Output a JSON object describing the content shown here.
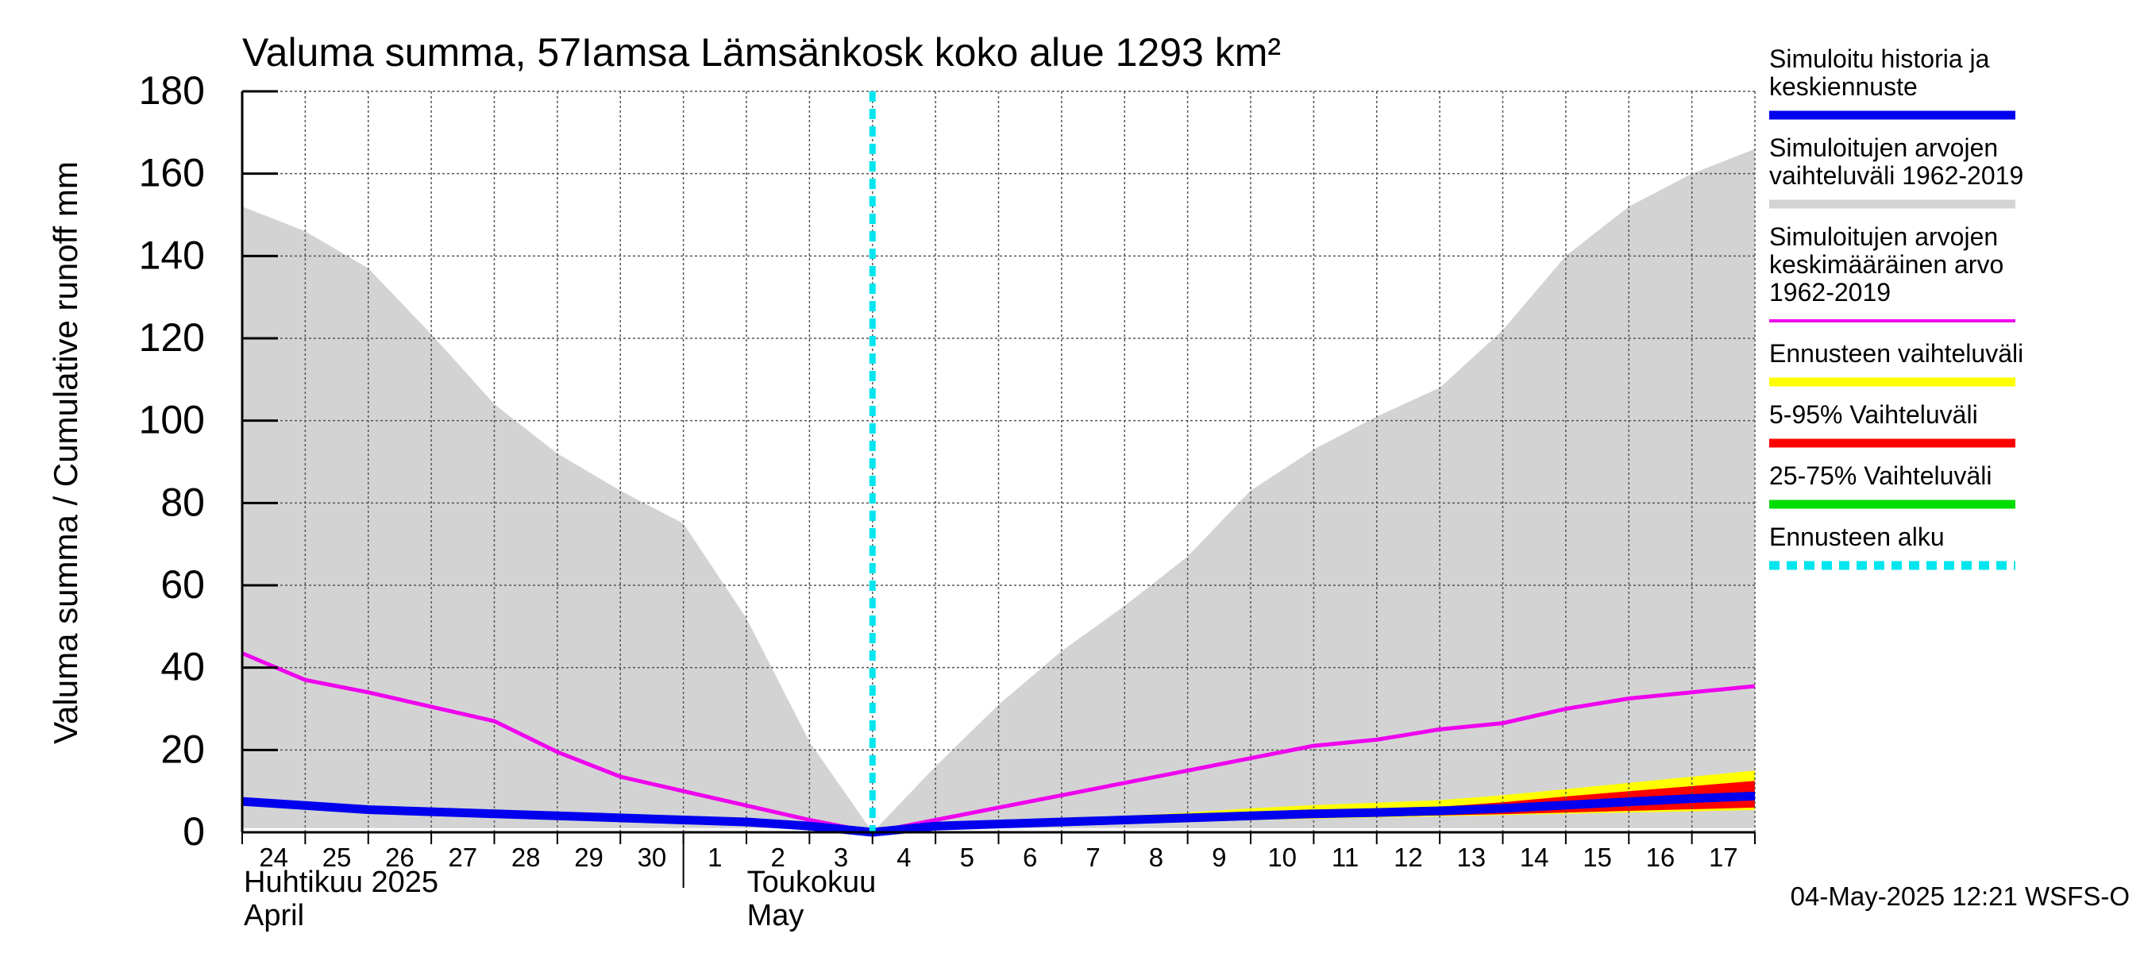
{
  "title": "Valuma summa, 57Iamsa Lämsänkosk koko alue 1293 km²",
  "timestamp": "04-May-2025 12:21 WSFS-O",
  "chart_data": {
    "type": "area",
    "ylabel": "Valuma summa / Cumulative runoff    mm",
    "ylim": [
      0,
      180
    ],
    "yticks": [
      0,
      20,
      40,
      60,
      80,
      100,
      120,
      140,
      160,
      180
    ],
    "grid": true,
    "legend_position": "right",
    "x_tick_labels": [
      "24",
      "25",
      "26",
      "27",
      "28",
      "29",
      "30",
      "1",
      "2",
      "3",
      "4",
      "5",
      "6",
      "7",
      "8",
      "9",
      "10",
      "11",
      "12",
      "13",
      "14",
      "15",
      "16",
      "17"
    ],
    "month_labels": [
      {
        "fi": "Huhtikuu  2025",
        "en": "April"
      },
      {
        "fi": "Toukokuu",
        "en": "May"
      }
    ],
    "x": [
      "2025-04-24",
      "2025-04-25",
      "2025-04-26",
      "2025-04-27",
      "2025-04-28",
      "2025-04-29",
      "2025-04-30",
      "2025-05-01",
      "2025-05-02",
      "2025-05-03",
      "2025-05-04",
      "2025-05-05",
      "2025-05-06",
      "2025-05-07",
      "2025-05-08",
      "2025-05-09",
      "2025-05-10",
      "2025-05-11",
      "2025-05-12",
      "2025-05-13",
      "2025-05-14",
      "2025-05-15",
      "2025-05-16",
      "2025-05-17",
      "2025-05-18"
    ],
    "forecast_start": "2025-05-04",
    "series": [
      {
        "key": "range",
        "name": "Simuloitujen arvojen vaihteluväli 1962-2019",
        "color": "#d3d3d3",
        "kind": "band",
        "lower": [
          1,
          1,
          1,
          1,
          1,
          1,
          1,
          1,
          1,
          1,
          0,
          1,
          1,
          1,
          1,
          1,
          1,
          1,
          1,
          1,
          1,
          1,
          1,
          1,
          1
        ],
        "upper": [
          152,
          146,
          137,
          121,
          104,
          92,
          83,
          75,
          52,
          22,
          0,
          16,
          31,
          44,
          55,
          67,
          83,
          93,
          101,
          108,
          122,
          140,
          152,
          160,
          166
        ]
      },
      {
        "key": "mean",
        "name": "Simuloitujen arvojen keskimääräinen arvo 1962-2019",
        "color": "#ee00ee",
        "kind": "line",
        "values": [
          43.5,
          37,
          34,
          30.5,
          27,
          19.5,
          13.5,
          10,
          6.5,
          3,
          0,
          3,
          6,
          9,
          12,
          15,
          18,
          21,
          22.5,
          25,
          26.5,
          30,
          32.5,
          34,
          35.5
        ]
      },
      {
        "key": "fc_range",
        "name": "Ennusteen vaihteluväli",
        "color": "#ffff00",
        "kind": "band",
        "lower": [
          null,
          null,
          null,
          null,
          null,
          null,
          null,
          null,
          null,
          null,
          0,
          1.0,
          1.4,
          1.8,
          2.2,
          2.6,
          3.0,
          3.3,
          3.6,
          3.9,
          4.2,
          4.5,
          4.8,
          5.1,
          5.4
        ],
        "upper": [
          null,
          null,
          null,
          null,
          null,
          null,
          null,
          null,
          null,
          null,
          0,
          1.8,
          2.5,
          3.2,
          4.0,
          4.8,
          5.8,
          6.6,
          7.2,
          7.8,
          9.0,
          10.5,
          12.0,
          13.5,
          15.0
        ]
      },
      {
        "key": "p5_95",
        "name": "5-95% Vaihteluväli",
        "color": "#ff0000",
        "kind": "band",
        "lower": [
          null,
          null,
          null,
          null,
          null,
          null,
          null,
          null,
          null,
          null,
          0,
          1.2,
          1.6,
          2.0,
          2.4,
          2.8,
          3.2,
          3.5,
          3.8,
          4.1,
          4.4,
          4.8,
          5.2,
          5.6,
          6.0
        ],
        "upper": [
          null,
          null,
          null,
          null,
          null,
          null,
          null,
          null,
          null,
          null,
          0,
          1.6,
          2.2,
          2.8,
          3.4,
          4.0,
          4.6,
          5.1,
          5.6,
          6.2,
          7.3,
          8.7,
          10.0,
          11.2,
          12.5
        ]
      },
      {
        "key": "p25_75",
        "name": "25-75% Vaihteluväli",
        "color": "#00dd00",
        "kind": "band",
        "lower": [
          null,
          null,
          null,
          null,
          null,
          null,
          null,
          null,
          null,
          null,
          0,
          1.4,
          1.9,
          2.4,
          2.9,
          3.4,
          3.9,
          4.3,
          4.6,
          5.0,
          5.4,
          6.0,
          6.6,
          7.2,
          7.8
        ],
        "upper": [
          null,
          null,
          null,
          null,
          null,
          null,
          null,
          null,
          null,
          null,
          0,
          1.6,
          2.1,
          2.6,
          3.2,
          3.7,
          4.3,
          4.7,
          5.1,
          5.6,
          6.3,
          7.3,
          8.2,
          9.0,
          9.8
        ]
      },
      {
        "key": "hist",
        "name": "Simuloitu historia ja keskiennuste",
        "color": "#0000ee",
        "kind": "line",
        "values": [
          7.5,
          6.5,
          5.5,
          5.0,
          4.5,
          4.0,
          3.5,
          3.0,
          2.5,
          1.5,
          0,
          1.5,
          2.0,
          2.5,
          3.0,
          3.5,
          4.0,
          4.5,
          4.8,
          5.2,
          5.8,
          6.6,
          7.4,
          8.2,
          8.8
        ]
      }
    ],
    "forecast_line": {
      "name": "Ennusteen alku",
      "color": "#00e5ee"
    }
  },
  "legend": [
    {
      "label": "Simuloitu historia ja keskiennuste",
      "color": "#0000ee",
      "style": "thick"
    },
    {
      "label": "Simuloitujen arvojen vaihteluväli 1962-2019",
      "color": "#d3d3d3",
      "style": "thick"
    },
    {
      "label": "Simuloitujen arvojen keskimääräinen arvo 1962-2019",
      "color": "#ee00ee",
      "style": "thin"
    },
    {
      "label": "Ennusteen vaihteluväli",
      "color": "#ffff00",
      "style": "thick"
    },
    {
      "label": "5-95% Vaihteluväli",
      "color": "#ff0000",
      "style": "thick"
    },
    {
      "label": "25-75% Vaihteluväli",
      "color": "#00dd00",
      "style": "thick"
    },
    {
      "label": "Ennusteen alku",
      "color": "#00e5ee",
      "style": "dashed"
    }
  ]
}
